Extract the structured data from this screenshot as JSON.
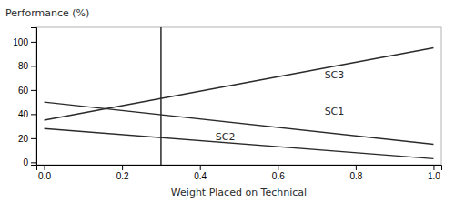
{
  "chart_data": {
    "type": "line",
    "xlabel": "Weight Placed on Technical",
    "ylabel": "Performance (%)",
    "color": "#2a2a2a",
    "x": [
      0.0,
      1.0
    ],
    "series": [
      {
        "values": [
          35,
          95
        ]
      },
      {
        "values": [
          50,
          15
        ]
      },
      {
        "values": [
          28,
          3
        ]
      }
    ],
    "vline": 0.3,
    "annotations": [
      {
        "text": "SC3",
        "x": 0.72,
        "y": 68
      },
      {
        "text": "SC1",
        "x": 0.72,
        "y": 38
      },
      {
        "text": "SC2",
        "x": 0.44,
        "y": 17
      }
    ],
    "xlim": [
      -0.02,
      1.02
    ],
    "ylim": [
      -2,
      112
    ],
    "xticks": [
      {
        "value": 0.0,
        "label": "0.0"
      },
      0.2,
      0.4,
      0.6,
      0.8,
      {
        "value": 1.0,
        "label": "1.0"
      }
    ],
    "yticks": [
      0,
      20,
      40,
      60,
      80,
      100
    ],
    "grid": false
  }
}
